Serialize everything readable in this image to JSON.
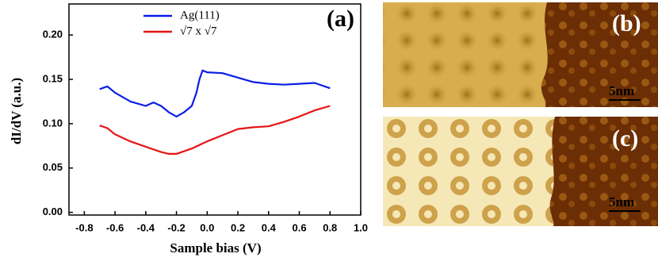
{
  "chart_data": {
    "type": "line",
    "panel_label": "(a)",
    "x_label": "Sample bias (V)",
    "y_label": "dI/dV (a.u.)",
    "xlim": [
      -0.9,
      1.0
    ],
    "ylim": [
      -0.003,
      0.235
    ],
    "xticks": [
      -0.8,
      -0.6,
      -0.4,
      -0.2,
      {
        "value": 0,
        "label": "0.0"
      },
      0.2,
      0.4,
      0.6,
      0.8,
      {
        "value": 1,
        "label": "1.0"
      }
    ],
    "yticks": [
      {
        "value": 0,
        "label": "0.00"
      },
      0.05,
      {
        "value": 0.1,
        "label": "0.10"
      },
      0.15,
      {
        "value": 0.2,
        "label": "0.20"
      }
    ],
    "legend": "upper center",
    "series": [
      {
        "name": "Ag(111)",
        "color": "#0a1ee6",
        "x": [
          -0.7,
          -0.65,
          -0.6,
          -0.5,
          -0.4,
          -0.35,
          -0.3,
          -0.25,
          -0.2,
          -0.15,
          -0.1,
          -0.07,
          -0.05,
          -0.03,
          0,
          0.1,
          0.2,
          0.3,
          0.4,
          0.5,
          0.6,
          0.7,
          0.8
        ],
        "values": [
          0.139,
          0.142,
          0.135,
          0.125,
          0.12,
          0.124,
          0.12,
          0.113,
          0.108,
          0.113,
          0.12,
          0.135,
          0.15,
          0.16,
          0.158,
          0.157,
          0.152,
          0.147,
          0.145,
          0.144,
          0.145,
          0.146,
          0.14
        ]
      },
      {
        "name": "√7 x √7",
        "color": "#e61414",
        "x": [
          -0.7,
          -0.65,
          -0.6,
          -0.5,
          -0.4,
          -0.3,
          -0.25,
          -0.2,
          -0.1,
          0,
          0.1,
          0.2,
          0.3,
          0.4,
          0.5,
          0.6,
          0.7,
          0.8
        ],
        "values": [
          0.098,
          0.095,
          0.088,
          0.08,
          0.074,
          0.068,
          0.066,
          0.066,
          0.072,
          0.08,
          0.087,
          0.094,
          0.096,
          0.097,
          0.102,
          0.108,
          0.115,
          0.12
        ]
      }
    ]
  },
  "images": [
    {
      "label": "(b)",
      "scale": "5nm"
    },
    {
      "label": "(c)",
      "scale": "5nm"
    }
  ]
}
